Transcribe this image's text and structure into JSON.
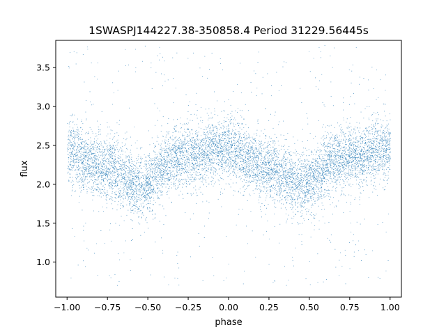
{
  "chart_data": {
    "type": "scatter",
    "title": "1SWASPJ144227.38-350858.4 Period 31229.56445s",
    "xlabel": "phase",
    "ylabel": "flux",
    "xlim": [
      -1.07,
      1.07
    ],
    "ylim": [
      0.55,
      3.85
    ],
    "xticks": [
      -1.0,
      -0.75,
      -0.5,
      -0.25,
      0.0,
      0.25,
      0.5,
      0.75,
      1.0
    ],
    "xtick_labels": [
      "−1.00",
      "−0.75",
      "−0.50",
      "−0.25",
      "0.00",
      "0.25",
      "0.50",
      "0.75",
      "1.00"
    ],
    "yticks": [
      1.0,
      1.5,
      2.0,
      2.5,
      3.0,
      3.5
    ],
    "ytick_labels": [
      "1.0",
      "1.5",
      "2.0",
      "2.5",
      "3.0",
      "3.5"
    ],
    "marker_color": "#1f77b4",
    "grid": false,
    "series": [
      {
        "x_range": [
          -1.0,
          1.0
        ],
        "curve": {
          "x": [
            -1.0,
            -0.75,
            -0.55,
            -0.3,
            -0.05,
            0.25,
            0.45,
            0.7,
            1.0
          ],
          "y": [
            2.42,
            2.22,
            2.0,
            2.35,
            2.46,
            2.22,
            2.0,
            2.34,
            2.46
          ]
        },
        "scatter_sigma": 0.2,
        "outlier_range": [
          0.7,
          3.8
        ]
      }
    ]
  }
}
